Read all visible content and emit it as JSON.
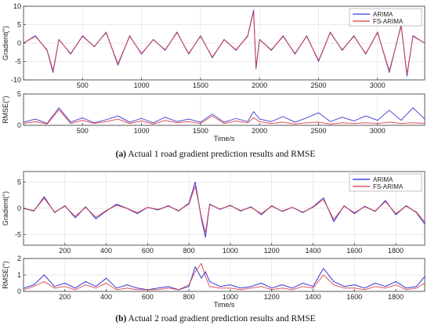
{
  "chart_data": [
    {
      "type": "line",
      "panel": "a-top",
      "caption_label": "(a)",
      "caption_text": "Actual 1 road gradient prediction results and RMSE",
      "ylabel": "Gradient(°)",
      "xlabel": "",
      "xlim": [
        0,
        3400
      ],
      "ylim": [
        -10,
        10
      ],
      "xticks": [
        500,
        1000,
        1500,
        2000,
        2500,
        3000
      ],
      "yticks": [
        -10,
        -5,
        0,
        5,
        10
      ],
      "grid": true,
      "legend": "top-right",
      "series": [
        {
          "name": "ARIMA",
          "color": "#3b3bd6",
          "x": [
            0,
            100,
            200,
            250,
            300,
            400,
            500,
            600,
            700,
            800,
            900,
            1000,
            1100,
            1200,
            1300,
            1400,
            1500,
            1600,
            1700,
            1800,
            1900,
            1950,
            1970,
            2000,
            2100,
            2200,
            2300,
            2400,
            2500,
            2600,
            2700,
            2800,
            2900,
            3000,
            3100,
            3200,
            3250,
            3300,
            3400
          ],
          "values": [
            0,
            2,
            -2,
            -8,
            1,
            -3,
            2,
            -1,
            3,
            -6,
            2,
            -3,
            1,
            -2,
            3,
            -3,
            2,
            -4,
            1,
            -2,
            2,
            9,
            -7,
            1,
            -2,
            2,
            -3,
            2,
            -5,
            3,
            -2,
            2,
            -3,
            3,
            -8,
            5,
            -9,
            2,
            0
          ]
        },
        {
          "name": "FS-ARIMA",
          "color": "#d9363e",
          "x": [
            0,
            100,
            200,
            250,
            300,
            400,
            500,
            600,
            700,
            800,
            900,
            1000,
            1100,
            1200,
            1300,
            1400,
            1500,
            1600,
            1700,
            1800,
            1900,
            1950,
            1970,
            2000,
            2100,
            2200,
            2300,
            2400,
            2500,
            2600,
            2700,
            2800,
            2900,
            3000,
            3100,
            3200,
            3250,
            3300,
            3400
          ],
          "values": [
            0,
            1.8,
            -1.8,
            -7.5,
            0.9,
            -2.8,
            1.8,
            -0.9,
            2.8,
            -5.6,
            1.8,
            -2.8,
            0.9,
            -1.8,
            2.8,
            -2.8,
            1.8,
            -3.8,
            0.9,
            -1.8,
            1.8,
            8.6,
            -6.6,
            0.9,
            -1.8,
            1.8,
            -2.8,
            1.8,
            -4.7,
            2.8,
            -1.8,
            1.8,
            -2.8,
            2.8,
            -7.5,
            4.6,
            -8.4,
            1.8,
            0
          ]
        }
      ]
    },
    {
      "type": "line",
      "panel": "a-bottom",
      "ylabel": "RMSE(°)",
      "xlabel": "Time/s",
      "xlim": [
        0,
        3400
      ],
      "ylim": [
        0,
        5
      ],
      "xticks": [
        500,
        1000,
        1500,
        2000,
        2500,
        3000
      ],
      "yticks": [
        0,
        5
      ],
      "grid": true,
      "series": [
        {
          "name": "ARIMA",
          "color": "#3b3bd6",
          "x": [
            0,
            100,
            200,
            300,
            400,
            500,
            600,
            700,
            800,
            900,
            1000,
            1100,
            1200,
            1300,
            1400,
            1500,
            1600,
            1700,
            1800,
            1900,
            1950,
            2000,
            2100,
            2200,
            2300,
            2400,
            2500,
            2600,
            2700,
            2800,
            2900,
            3000,
            3100,
            3200,
            3300,
            3400
          ],
          "values": [
            0.5,
            1,
            0.3,
            2.8,
            0.5,
            1.2,
            0.4,
            0.9,
            1.5,
            0.5,
            1.1,
            0.4,
            1.3,
            0.6,
            1,
            0.5,
            1.8,
            0.5,
            1.1,
            0.6,
            2.2,
            1,
            0.6,
            1.4,
            0.5,
            1.2,
            2,
            0.6,
            1.3,
            0.7,
            1.5,
            0.8,
            2.4,
            0.8,
            2.8,
            1
          ]
        },
        {
          "name": "FS-ARIMA",
          "color": "#d9363e",
          "x": [
            0,
            100,
            200,
            300,
            400,
            500,
            600,
            700,
            800,
            900,
            1000,
            1100,
            1200,
            1300,
            1400,
            1500,
            1600,
            1700,
            1800,
            1900,
            1950,
            2000,
            2100,
            2200,
            2300,
            2400,
            2500,
            2600,
            2700,
            2800,
            2900,
            3000,
            3100,
            3200,
            3300,
            3400
          ],
          "values": [
            0.3,
            0.6,
            0.2,
            2.5,
            0.3,
            0.8,
            0.3,
            0.6,
            1,
            0.3,
            0.7,
            0.2,
            0.8,
            0.4,
            0.6,
            0.3,
            1.5,
            0.3,
            0.7,
            0.4,
            1.2,
            0.6,
            0.3,
            0.5,
            0.2,
            0.4,
            0.5,
            0.2,
            0.4,
            0.3,
            0.4,
            0.3,
            0.5,
            0.3,
            0.4,
            0.3
          ]
        }
      ]
    },
    {
      "type": "line",
      "panel": "b-top",
      "caption_label": "(b)",
      "caption_text": "Actual 2 road gradient prediction results and RMSE",
      "ylabel": "Gradient(°)",
      "xlabel": "",
      "xlim": [
        0,
        1940
      ],
      "ylim": [
        -7,
        7
      ],
      "xticks": [
        200,
        400,
        600,
        800,
        1000,
        1200,
        1400,
        1600,
        1800
      ],
      "yticks": [
        -5,
        0,
        5
      ],
      "grid": true,
      "legend": "top-right",
      "series": [
        {
          "name": "ARIMA",
          "color": "#1f1fd0",
          "x": [
            0,
            50,
            100,
            150,
            200,
            250,
            300,
            350,
            400,
            450,
            500,
            550,
            600,
            650,
            700,
            750,
            800,
            830,
            860,
            880,
            900,
            950,
            1000,
            1050,
            1100,
            1150,
            1200,
            1250,
            1300,
            1350,
            1400,
            1450,
            1500,
            1550,
            1600,
            1650,
            1700,
            1750,
            1800,
            1850,
            1900,
            1940
          ],
          "values": [
            0,
            -0.5,
            2.2,
            -0.8,
            0.5,
            -1.8,
            0.3,
            -2,
            -0.5,
            0.8,
            0,
            -1,
            0.2,
            -0.3,
            0.5,
            -0.5,
            1,
            5,
            -2,
            -5.5,
            0.8,
            -0.2,
            0.6,
            -0.5,
            0.3,
            -1.2,
            0.5,
            -0.6,
            0.2,
            -0.8,
            0.3,
            2,
            -2.5,
            0.5,
            -1,
            0.4,
            -0.6,
            1.5,
            -1.2,
            0.5,
            -0.8,
            -3
          ]
        },
        {
          "name": "FS-ARIMA",
          "color": "#d9363e",
          "x": [
            0,
            50,
            100,
            150,
            200,
            250,
            300,
            350,
            400,
            450,
            500,
            550,
            600,
            650,
            700,
            750,
            800,
            830,
            860,
            880,
            900,
            950,
            1000,
            1050,
            1100,
            1150,
            1200,
            1250,
            1300,
            1350,
            1400,
            1450,
            1500,
            1550,
            1600,
            1650,
            1700,
            1750,
            1800,
            1850,
            1900,
            1940
          ],
          "values": [
            0,
            -0.4,
            1.9,
            -0.7,
            0.4,
            -1.5,
            0.2,
            -1.7,
            -0.4,
            0.6,
            0,
            -0.8,
            0.2,
            -0.2,
            0.4,
            -0.4,
            0.8,
            4.2,
            -1.6,
            -4.6,
            0.7,
            -0.1,
            0.5,
            -0.4,
            0.2,
            -1,
            0.4,
            -0.5,
            0.2,
            -0.7,
            0.2,
            1.7,
            -2.1,
            0.4,
            -0.8,
            0.3,
            -0.5,
            1.3,
            -1,
            0.4,
            -0.7,
            -2.6
          ]
        }
      ]
    },
    {
      "type": "line",
      "panel": "b-bottom",
      "ylabel": "RMSE(°)",
      "xlabel": "Time/s",
      "xlim": [
        0,
        1940
      ],
      "ylim": [
        0,
        2
      ],
      "xticks": [
        200,
        400,
        600,
        800,
        1000,
        1200,
        1400,
        1600,
        1800
      ],
      "yticks": [
        0,
        1,
        2
      ],
      "grid": true,
      "series": [
        {
          "name": "ARIMA",
          "color": "#1f1fd0",
          "x": [
            0,
            50,
            100,
            150,
            200,
            250,
            300,
            350,
            400,
            450,
            500,
            550,
            600,
            650,
            700,
            750,
            800,
            830,
            860,
            880,
            900,
            950,
            1000,
            1050,
            1100,
            1150,
            1200,
            1250,
            1300,
            1350,
            1400,
            1450,
            1500,
            1550,
            1600,
            1650,
            1700,
            1750,
            1800,
            1850,
            1900,
            1940
          ],
          "values": [
            0.2,
            0.4,
            1,
            0.3,
            0.5,
            0.2,
            0.6,
            0.3,
            0.8,
            0.2,
            0.4,
            0.2,
            0.1,
            0.2,
            0.3,
            0.1,
            0.3,
            1.5,
            0.8,
            1.2,
            0.6,
            0.3,
            0.4,
            0.2,
            0.3,
            0.5,
            0.2,
            0.4,
            0.2,
            0.5,
            0.3,
            1.4,
            0.6,
            0.3,
            0.4,
            0.2,
            0.5,
            0.3,
            0.6,
            0.2,
            0.3,
            0.9
          ]
        },
        {
          "name": "FS-ARIMA",
          "color": "#d9363e",
          "x": [
            0,
            50,
            100,
            150,
            200,
            250,
            300,
            350,
            400,
            450,
            500,
            550,
            600,
            650,
            700,
            750,
            800,
            830,
            860,
            880,
            900,
            950,
            1000,
            1050,
            1100,
            1150,
            1200,
            1250,
            1300,
            1350,
            1400,
            1450,
            1500,
            1550,
            1600,
            1650,
            1700,
            1750,
            1800,
            1850,
            1900,
            1940
          ],
          "values": [
            0.1,
            0.3,
            0.6,
            0.2,
            0.3,
            0.1,
            0.4,
            0.2,
            0.5,
            0.1,
            0.2,
            0.1,
            0.1,
            0.1,
            0.2,
            0.1,
            0.4,
            1.2,
            1.7,
            0.9,
            0.3,
            0.2,
            0.2,
            0.1,
            0.2,
            0.3,
            0.1,
            0.2,
            0.1,
            0.3,
            0.2,
            1,
            0.4,
            0.2,
            0.2,
            0.1,
            0.3,
            0.2,
            0.4,
            0.1,
            0.2,
            0.5
          ]
        }
      ]
    }
  ]
}
